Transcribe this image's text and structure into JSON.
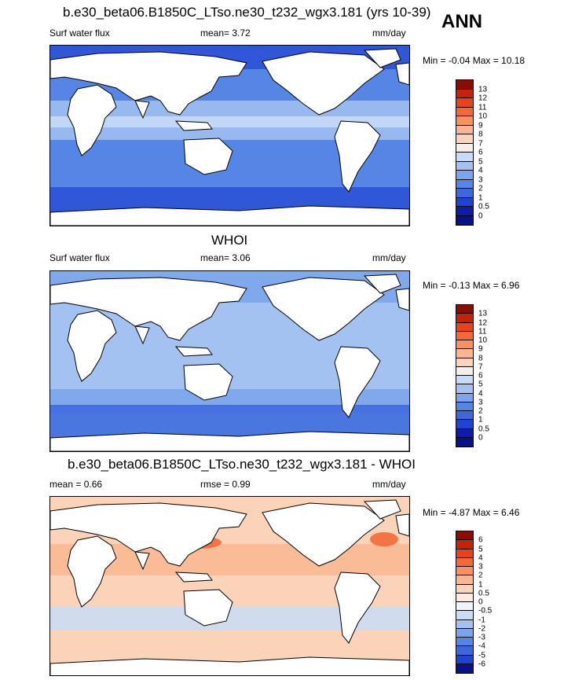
{
  "header": {
    "annual_label": "ANN"
  },
  "panels": [
    {
      "title": "b.e30_beta06.B1850C_LTso.ne30_t232_wgx3.181 (yrs 10-39)",
      "left_label": "Surf water flux",
      "stat1": "mean=  3.72",
      "stat2": "",
      "units": "mm/day",
      "minmax": "Min =  -0.04 Max =  10.18",
      "levels": [
        "13",
        "12",
        "11",
        "10",
        "9",
        "8",
        "7",
        "6",
        "5",
        "4",
        "3",
        "2",
        "1",
        "0.5",
        "0"
      ],
      "colors": [
        "#8b0d00",
        "#c8210a",
        "#e8431d",
        "#f26a3a",
        "#f6925f",
        "#f9b691",
        "#fbd3b8",
        "#f6efe9",
        "#c9dcf7",
        "#a3c2f2",
        "#7aa4ec",
        "#5585e5",
        "#3b68dd",
        "#1e44d2",
        "#0c1ea8",
        "#061285"
      ]
    },
    {
      "title": "WHOI",
      "left_label": "Surf water flux",
      "stat1": "mean=  3.06",
      "stat2": "",
      "units": "mm/day",
      "minmax": "Min =  -0.13 Max =   6.96",
      "levels": [
        "13",
        "12",
        "11",
        "10",
        "9",
        "8",
        "7",
        "6",
        "5",
        "4",
        "3",
        "2",
        "1",
        "0.5",
        "0"
      ],
      "colors": [
        "#8b0d00",
        "#c8210a",
        "#e8431d",
        "#f26a3a",
        "#f6925f",
        "#f9b691",
        "#fbd3b8",
        "#f6efe9",
        "#c9dcf7",
        "#a3c2f2",
        "#7aa4ec",
        "#5585e5",
        "#3b68dd",
        "#1e44d2",
        "#0c1ea8",
        "#061285"
      ]
    },
    {
      "title": "b.e30_beta06.B1850C_LTso.ne30_t232_wgx3.181 - WHOI",
      "left_label": "mean =   0.66",
      "stat1": "rmse =   0.99",
      "stat2": "",
      "units": "mm/day",
      "minmax": "Min =  -4.87 Max =   6.46",
      "levels": [
        "6",
        "5",
        "4",
        "3",
        "2",
        "1",
        "0.5",
        "0",
        "-0.5",
        "-1",
        "-2",
        "-3",
        "-4",
        "-5",
        "-6"
      ],
      "colors": [
        "#8b0d00",
        "#c8210a",
        "#e8431d",
        "#f26a3a",
        "#f6925f",
        "#f9b691",
        "#fbd3b8",
        "#fde9dd",
        "#eef3fc",
        "#c9dcf7",
        "#a3c2f2",
        "#7aa4ec",
        "#5585e5",
        "#3b68dd",
        "#1e44d2",
        "#061285"
      ]
    }
  ],
  "map_colors": {
    "land": "#ffffff",
    "coast": "#000000",
    "model_ocean": "#5585e5",
    "model_deep": "#2a4fd6",
    "model_light": "#a3c2f2",
    "model_pale": "#c9dcf7",
    "whoi_ocean": "#a3c2f2",
    "whoi_mid": "#7aa4ec",
    "whoi_deep": "#3b68dd",
    "diff_ocean": "#fbd3b8",
    "diff_mid": "#f9b691",
    "diff_hot": "#f26a3a",
    "diff_cool": "#c9dcf7"
  }
}
